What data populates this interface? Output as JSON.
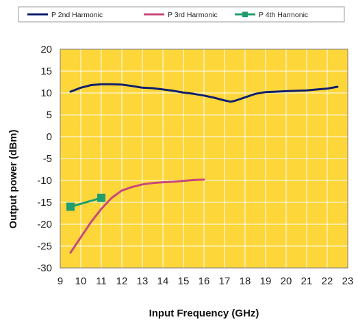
{
  "chart_data": {
    "type": "line",
    "xlabel": "Input Frequency (GHz)",
    "ylabel": "Output power (dBm)",
    "xlim": [
      9,
      23
    ],
    "ylim": [
      -30,
      20
    ],
    "x_ticks": [
      9,
      10,
      11,
      12,
      13,
      14,
      15,
      16,
      17,
      18,
      19,
      20,
      21,
      22,
      23
    ],
    "y_ticks": [
      20,
      15,
      10,
      5,
      0,
      -5,
      -10,
      -15,
      -20,
      -25,
      -30
    ],
    "grid": true,
    "legend_position": "top",
    "plot_background": "#FDD63A",
    "series": [
      {
        "name": "P 2nd Harmonic",
        "color": "#0D1F6B",
        "marker": "none",
        "x": [
          9.5,
          10.0,
          10.5,
          11.0,
          11.5,
          12.0,
          12.5,
          13.0,
          13.5,
          14.0,
          14.5,
          15.0,
          15.5,
          16.0,
          16.5,
          17.0,
          17.3,
          17.5,
          18.0,
          18.5,
          19.0,
          19.5,
          20.0,
          20.5,
          21.0,
          21.5,
          22.0,
          22.5
        ],
        "y": [
          10.3,
          11.2,
          11.8,
          12.0,
          12.0,
          11.9,
          11.6,
          11.2,
          11.1,
          10.8,
          10.5,
          10.1,
          9.8,
          9.4,
          8.9,
          8.3,
          8.0,
          8.2,
          9.0,
          9.8,
          10.2,
          10.3,
          10.4,
          10.5,
          10.6,
          10.8,
          11.0,
          11.4
        ]
      },
      {
        "name": "P 3rd Harmonic",
        "color": "#C8487B",
        "marker": "none",
        "x": [
          9.5,
          10.0,
          10.5,
          11.0,
          11.5,
          12.0,
          12.5,
          13.0,
          13.5,
          14.0,
          14.5,
          15.0,
          15.5,
          16.0
        ],
        "y": [
          -26.5,
          -23.0,
          -19.5,
          -16.5,
          -14.0,
          -12.3,
          -11.5,
          -10.9,
          -10.6,
          -10.4,
          -10.3,
          -10.1,
          -9.9,
          -9.8
        ]
      },
      {
        "name": "P 4th Harmonic",
        "color": "#1F9E6E",
        "marker": "square",
        "x": [
          9.5,
          11.0
        ],
        "y": [
          -16.0,
          -14.0
        ]
      }
    ]
  }
}
